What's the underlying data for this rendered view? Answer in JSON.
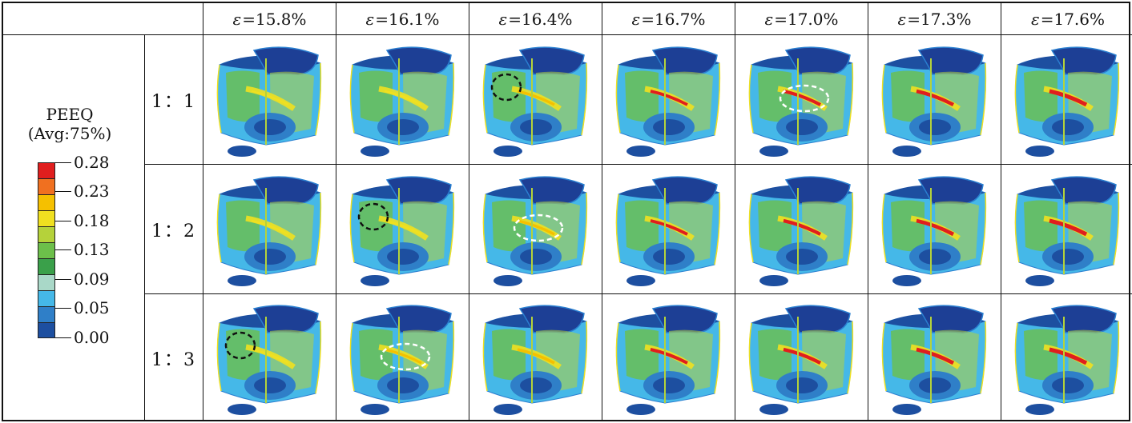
{
  "strain_headers": [
    "15.8%",
    "16.1%",
    "16.4%",
    "16.7%",
    "17.0%",
    "17.3%",
    "17.6%"
  ],
  "strain_symbol": "ε",
  "ratios": [
    "1：1",
    "1：2",
    "1：3"
  ],
  "legend": {
    "title_line1": "PEEQ",
    "title_line2": "(Avg:75%)",
    "ticks": [
      "0.28",
      "0.23",
      "0.18",
      "0.13",
      "0.09",
      "0.05",
      "0.00"
    ],
    "colors": [
      "#e01e1e",
      "#f07020",
      "#f5c000",
      "#f0e020",
      "#b5d23a",
      "#6cbf4a",
      "#3aa04a",
      "#a9d8c8",
      "#45b8e8",
      "#2f7fc8",
      "#1d4fa0"
    ]
  },
  "markers": {
    "row0": {
      "col2": "black",
      "col4": "white"
    },
    "row1": {
      "col1": "black",
      "col2": "white"
    },
    "row2": {
      "col0": "black",
      "col1": "white"
    }
  }
}
